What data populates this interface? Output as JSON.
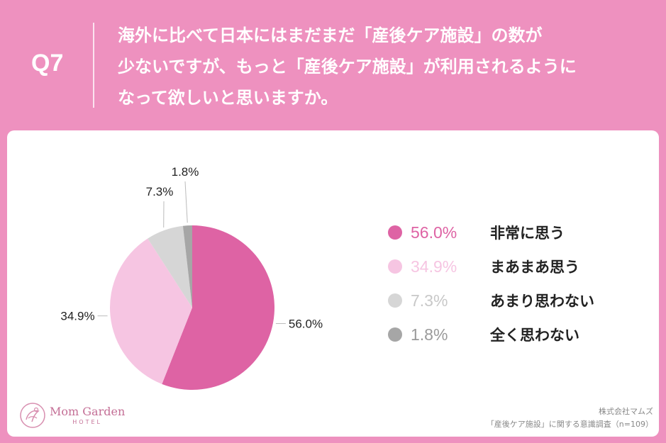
{
  "question": {
    "number": "Q7",
    "lines": [
      "海外に比べて日本にはまだまだ「産後ケア施設」の数が",
      "少ないですが、もっと「産後ケア施設」が利用されるように",
      "なって欲しいと思いますか。"
    ]
  },
  "colors": {
    "background": "#ee91bf",
    "panel": "#ffffff",
    "slice_1": "#de63a4",
    "slice_2": "#f6c5e2",
    "slice_3": "#d6d6d6",
    "slice_4": "#a6a6a6"
  },
  "chart_data": {
    "type": "pie",
    "title": "",
    "start": "12 o'clock",
    "direction": "clockwise",
    "slices": [
      {
        "label": "非常に思う",
        "value": 56.0,
        "display": "56.0%"
      },
      {
        "label": "まあまあ思う",
        "value": 34.9,
        "display": "34.9%"
      },
      {
        "label": "あまり思わない",
        "value": 7.3,
        "display": "7.3%"
      },
      {
        "label": "全く思わない",
        "value": 1.8,
        "display": "1.8%"
      }
    ],
    "legend_placement": "right"
  },
  "footer": {
    "logo_name": "Mom Garden",
    "logo_sub": "HOTEL",
    "source_company": "株式会社マムズ",
    "source_survey": "「産後ケア施設」に関する意識調査（n=109）"
  }
}
